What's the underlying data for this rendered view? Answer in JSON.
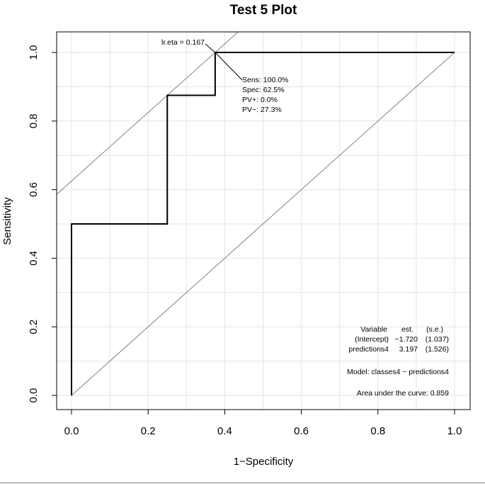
{
  "chart_data": {
    "type": "line",
    "title": "Test 5 Plot",
    "xlabel": "1−Specificity",
    "ylabel": "Sensitivity",
    "xlim": [
      -0.04,
      1.04
    ],
    "ylim": [
      -0.04,
      1.04
    ],
    "grid": true,
    "x_ticks": [
      0.0,
      0.2,
      0.4,
      0.6,
      0.8,
      1.0
    ],
    "x_tick_labels": [
      "0.0",
      "0.2",
      "0.4",
      "0.6",
      "0.8",
      "1.0"
    ],
    "y_ticks": [
      0.0,
      0.2,
      0.4,
      0.6,
      0.8,
      1.0
    ],
    "y_tick_labels": [
      "0.0",
      "0.2",
      "0.4",
      "0.6",
      "0.8",
      "1.0"
    ],
    "series": [
      {
        "x": [
          0.0,
          0.0,
          0.25,
          0.25,
          0.375,
          0.375,
          1.0
        ],
        "y": [
          0.0,
          0.5,
          0.5,
          0.875,
          0.875,
          1.0,
          1.0
        ],
        "color": "#000000"
      }
    ],
    "reference_lines": [
      {
        "points": [
          [
            0,
            0
          ],
          [
            1,
            1
          ]
        ],
        "color": "#808080"
      },
      {
        "points": [
          [
            -0.625,
            0
          ],
          [
            1,
            1.625
          ]
        ],
        "color": "#808080"
      }
    ],
    "annotations": {
      "cutoff_label": "lr.eta = 0.167",
      "cutoff_point": {
        "x": 0.375,
        "y": 1.0
      },
      "stats": [
        "Sens: 100.0%",
        "Spec: 62.5%",
        "PV+: 0.0%",
        "PV−: 27.3%"
      ],
      "coef_header": [
        "Variable",
        "est.",
        "(s.e.)"
      ],
      "coef_rows": [
        [
          "(Intercept)",
          "−1.720",
          "(1.037)"
        ],
        [
          "predictions4",
          "3.197",
          "(1.526)"
        ]
      ],
      "model": "Model:  classes4 ~ predictions4",
      "auc": "Area under the curve: 0.859"
    }
  }
}
